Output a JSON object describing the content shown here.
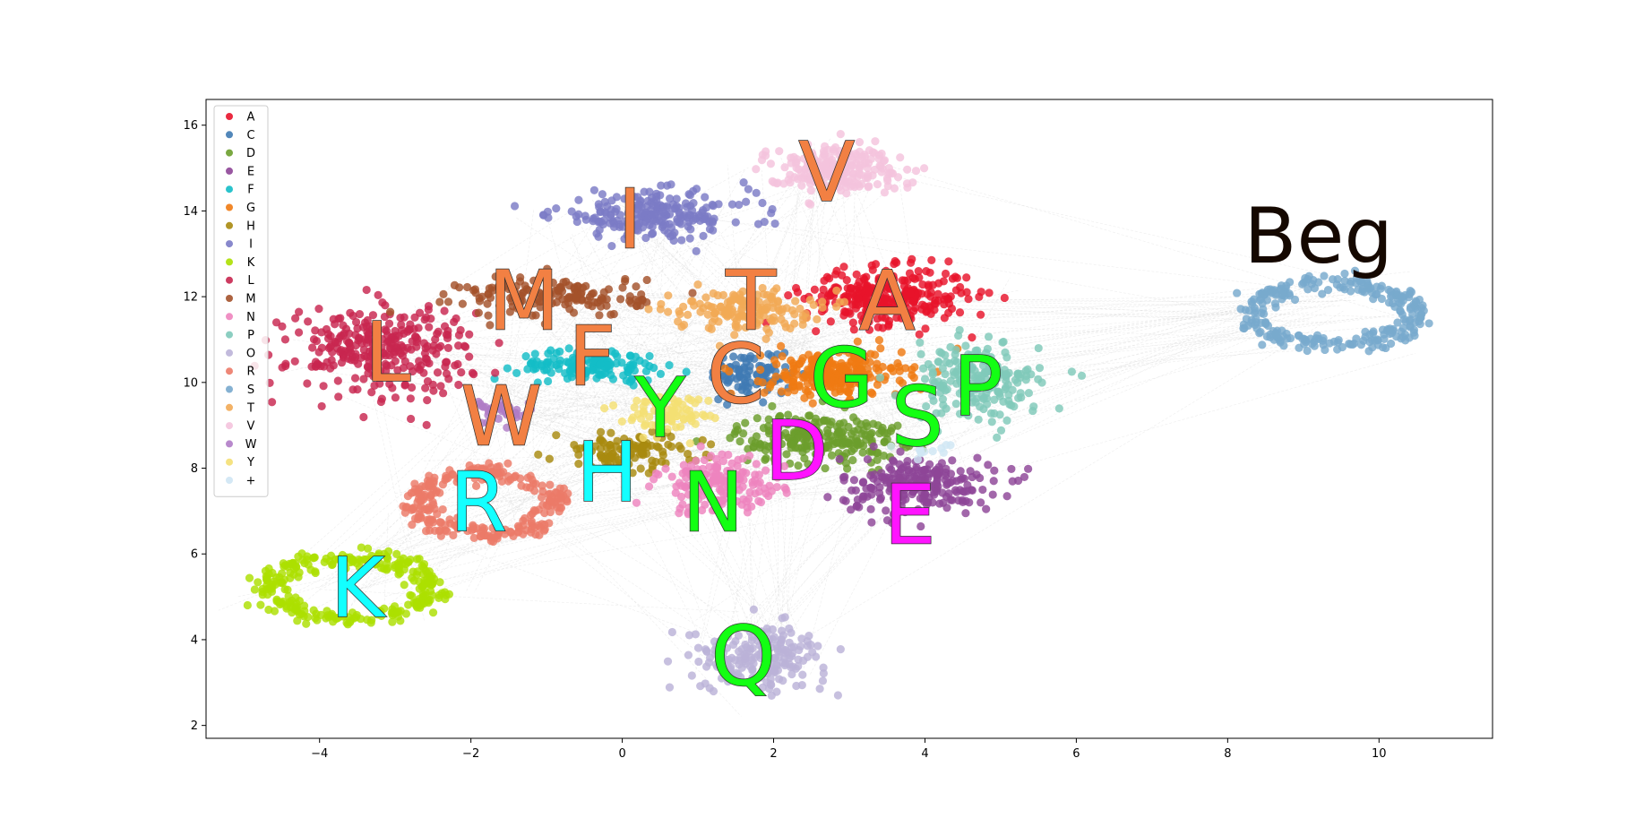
{
  "chart_data": {
    "type": "scatter",
    "title": "",
    "xlabel": "",
    "ylabel": "",
    "xlim": [
      -5.5,
      11.5
    ],
    "ylim": [
      1.7,
      16.6
    ],
    "x_ticks": [
      -4,
      -2,
      0,
      2,
      4,
      6,
      8,
      10
    ],
    "y_ticks": [
      2,
      4,
      6,
      8,
      10,
      12,
      14,
      16
    ],
    "grid": false,
    "legend_position": "top-left",
    "background_edges": true,
    "series": [
      {
        "name": "A",
        "color": "#e8132b",
        "center": [
          3.5,
          12.0
        ],
        "spread": [
          0.9,
          0.55
        ],
        "shape": "blob",
        "n": 300
      },
      {
        "name": "C",
        "color": "#3f7ab3",
        "center": [
          1.7,
          10.2
        ],
        "spread": [
          0.45,
          0.45
        ],
        "shape": "blob",
        "n": 90
      },
      {
        "name": "D",
        "color": "#6b9e2c",
        "center": [
          2.6,
          8.7
        ],
        "spread": [
          0.9,
          0.5
        ],
        "shape": "blob",
        "n": 230
      },
      {
        "name": "E",
        "color": "#8e4597",
        "center": [
          3.9,
          7.6
        ],
        "spread": [
          0.85,
          0.55
        ],
        "shape": "blob",
        "n": 230
      },
      {
        "name": "F",
        "color": "#13bdc7",
        "center": [
          -0.4,
          10.4
        ],
        "spread": [
          0.8,
          0.3
        ],
        "shape": "blob",
        "n": 140
      },
      {
        "name": "G",
        "color": "#ef7a12",
        "center": [
          2.8,
          10.2
        ],
        "spread": [
          0.75,
          0.45
        ],
        "shape": "blob",
        "n": 250
      },
      {
        "name": "H",
        "color": "#a88a0f",
        "center": [
          0.1,
          8.4
        ],
        "spread": [
          0.8,
          0.35
        ],
        "shape": "blob",
        "n": 110
      },
      {
        "name": "I",
        "color": "#7b7bc6",
        "center": [
          0.4,
          13.9
        ],
        "spread": [
          1.1,
          0.45
        ],
        "shape": "blob",
        "n": 230
      },
      {
        "name": "K",
        "color": "#acdf00",
        "center": [
          -3.6,
          5.2
        ],
        "spread": [
          1.15,
          0.75
        ],
        "shape": "ring",
        "n": 280
      },
      {
        "name": "L",
        "color": "#c8264f",
        "center": [
          -3.2,
          10.8
        ],
        "spread": [
          1.0,
          0.85
        ],
        "shape": "blob",
        "n": 300
      },
      {
        "name": "M",
        "color": "#a4522b",
        "center": [
          -0.9,
          12.0
        ],
        "spread": [
          1.0,
          0.4
        ],
        "shape": "blob",
        "n": 160
      },
      {
        "name": "N",
        "color": "#ee84be",
        "center": [
          1.3,
          7.6
        ],
        "spread": [
          0.7,
          0.55
        ],
        "shape": "blob",
        "n": 160
      },
      {
        "name": "P",
        "color": "#80c9ba",
        "center": [
          4.7,
          10.0
        ],
        "spread": [
          0.7,
          0.75
        ],
        "shape": "blob",
        "n": 210
      },
      {
        "name": "O",
        "color": "#bbb2d8",
        "center": [
          1.8,
          3.6
        ],
        "spread": [
          0.75,
          0.6
        ],
        "shape": "blob",
        "n": 200
      },
      {
        "name": "R",
        "color": "#ec7a68",
        "center": [
          -1.8,
          7.2
        ],
        "spread": [
          0.95,
          0.75
        ],
        "shape": "ring",
        "n": 260
      },
      {
        "name": "S",
        "color": "#78a9cd",
        "center": [
          9.4,
          11.6
        ],
        "spread": [
          1.15,
          0.75
        ],
        "shape": "ring",
        "n": 260
      },
      {
        "name": "T",
        "color": "#f2aa55",
        "center": [
          1.6,
          11.7
        ],
        "spread": [
          0.75,
          0.4
        ],
        "shape": "blob",
        "n": 160
      },
      {
        "name": "V",
        "color": "#f4c3dd",
        "center": [
          2.8,
          15.0
        ],
        "spread": [
          0.75,
          0.45
        ],
        "shape": "blob",
        "n": 220
      },
      {
        "name": "W",
        "color": "#b07cc6",
        "center": [
          -1.6,
          9.3
        ],
        "spread": [
          0.35,
          0.3
        ],
        "shape": "blob",
        "n": 40
      },
      {
        "name": "Y",
        "color": "#f4df73",
        "center": [
          0.6,
          9.3
        ],
        "spread": [
          0.5,
          0.35
        ],
        "shape": "blob",
        "n": 80
      },
      {
        "name": "+",
        "color": "#cfe6f4",
        "center": [
          4.0,
          8.4
        ],
        "spread": [
          0.3,
          0.15
        ],
        "shape": "blob",
        "n": 12
      }
    ],
    "annotations": [
      {
        "text": "V",
        "x": 2.7,
        "y": 14.9,
        "fill": "#f28043",
        "stroke": "#333333"
      },
      {
        "text": "I",
        "x": 0.1,
        "y": 13.8,
        "fill": "#f28043",
        "stroke": "#333333"
      },
      {
        "text": "Beg",
        "x": 9.2,
        "y": 13.4,
        "fill": "#150800",
        "stroke": "#150800"
      },
      {
        "text": "M",
        "x": -1.3,
        "y": 11.9,
        "fill": "#f28043",
        "stroke": "#333333"
      },
      {
        "text": "T",
        "x": 1.7,
        "y": 11.9,
        "fill": "#f28043",
        "stroke": "#333333"
      },
      {
        "text": "A",
        "x": 3.5,
        "y": 11.9,
        "fill": "#f28043",
        "stroke": "#333333"
      },
      {
        "text": "L",
        "x": -3.1,
        "y": 10.7,
        "fill": "#f28043",
        "stroke": "#333333"
      },
      {
        "text": "F",
        "x": -0.4,
        "y": 10.6,
        "fill": "#f28043",
        "stroke": "#333333"
      },
      {
        "text": "C",
        "x": 1.5,
        "y": 10.2,
        "fill": "#f28043",
        "stroke": "#333333"
      },
      {
        "text": "G",
        "x": 2.9,
        "y": 10.1,
        "fill": "#13ff13",
        "stroke": "#333333"
      },
      {
        "text": "P",
        "x": 4.7,
        "y": 9.9,
        "fill": "#13ff13",
        "stroke": "#333333"
      },
      {
        "text": "Y",
        "x": 0.5,
        "y": 9.4,
        "fill": "#13ff13",
        "stroke": "#333333"
      },
      {
        "text": "W",
        "x": -1.6,
        "y": 9.2,
        "fill": "#f28043",
        "stroke": "#333333"
      },
      {
        "text": "S",
        "x": 3.9,
        "y": 9.2,
        "fill": "#13ff13",
        "stroke": "#333333"
      },
      {
        "text": "D",
        "x": 2.3,
        "y": 8.4,
        "fill": "#ff13ff",
        "stroke": "#333333"
      },
      {
        "text": "H",
        "x": -0.2,
        "y": 7.9,
        "fill": "#13ffff",
        "stroke": "#333333"
      },
      {
        "text": "R",
        "x": -1.9,
        "y": 7.2,
        "fill": "#13ffff",
        "stroke": "#333333"
      },
      {
        "text": "N",
        "x": 1.2,
        "y": 7.2,
        "fill": "#13ff13",
        "stroke": "#333333"
      },
      {
        "text": "E",
        "x": 3.8,
        "y": 6.9,
        "fill": "#ff13ff",
        "stroke": "#333333"
      },
      {
        "text": "K",
        "x": -3.5,
        "y": 5.2,
        "fill": "#13ffff",
        "stroke": "#333333"
      },
      {
        "text": "Q",
        "x": 1.6,
        "y": 3.6,
        "fill": "#13ff13",
        "stroke": "#333333"
      }
    ]
  }
}
